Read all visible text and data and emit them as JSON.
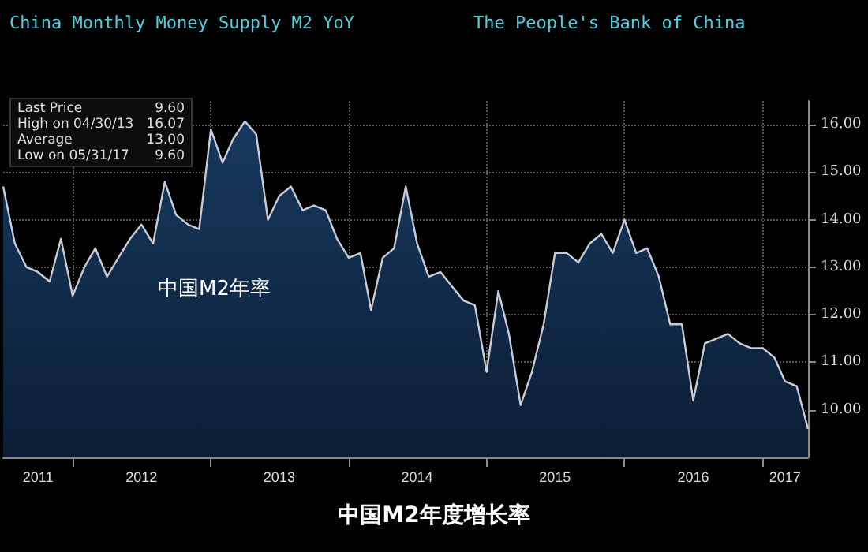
{
  "chart_data": {
    "type": "area",
    "title": "中国M2年度增长率",
    "annotations": [
      "China Monthly Money Supply M2 YoY",
      "The People's Bank of China",
      "中国M2年率",
      "Last Price 9.60",
      "High on 04/30/13 16.07",
      "Average 13.00",
      "Low on 05/31/17 9.60"
    ],
    "x": [
      "2011-07",
      "2011-08",
      "2011-09",
      "2011-10",
      "2011-11",
      "2011-12",
      "2012-01",
      "2012-02",
      "2012-03",
      "2012-04",
      "2012-05",
      "2012-06",
      "2012-07",
      "2012-08",
      "2012-09",
      "2012-10",
      "2012-11",
      "2012-12",
      "2013-01",
      "2013-02",
      "2013-03",
      "2013-04",
      "2013-05",
      "2013-06",
      "2013-07",
      "2013-08",
      "2013-09",
      "2013-10",
      "2013-11",
      "2013-12",
      "2014-01",
      "2014-02",
      "2014-03",
      "2014-04",
      "2014-05",
      "2014-06",
      "2014-07",
      "2014-08",
      "2014-09",
      "2014-10",
      "2014-11",
      "2014-12",
      "2015-01",
      "2015-02",
      "2015-03",
      "2015-04",
      "2015-05",
      "2015-06",
      "2015-07",
      "2015-08",
      "2015-09",
      "2015-10",
      "2015-11",
      "2015-12",
      "2016-01",
      "2016-02",
      "2016-03",
      "2016-04",
      "2016-05",
      "2016-06",
      "2016-07",
      "2016-08",
      "2016-09",
      "2016-10",
      "2016-11",
      "2016-12",
      "2017-01",
      "2017-02",
      "2017-03",
      "2017-04",
      "2017-05"
    ],
    "values": [
      14.7,
      13.5,
      13.0,
      12.9,
      12.7,
      13.6,
      12.4,
      13.0,
      13.4,
      12.8,
      13.2,
      13.6,
      13.9,
      13.5,
      14.8,
      14.1,
      13.9,
      13.8,
      15.9,
      15.2,
      15.7,
      16.07,
      15.8,
      14.0,
      14.5,
      14.7,
      14.2,
      14.3,
      14.2,
      13.6,
      13.2,
      13.3,
      12.1,
      13.2,
      13.4,
      14.7,
      13.5,
      12.8,
      12.9,
      12.6,
      12.3,
      12.2,
      10.8,
      12.5,
      11.6,
      10.1,
      10.8,
      11.8,
      13.3,
      13.3,
      13.1,
      13.5,
      13.7,
      13.3,
      14.0,
      13.3,
      13.4,
      12.8,
      11.8,
      11.8,
      10.2,
      11.4,
      11.5,
      11.6,
      11.4,
      11.3,
      11.3,
      11.1,
      10.6,
      10.5,
      9.6
    ],
    "color": "#17395e",
    "xlim": [
      "2011-07",
      "2017-05"
    ],
    "xticks": [
      {
        "value": "2011-10",
        "label": "2011"
      },
      {
        "value": "2012-01",
        "label": null
      },
      {
        "value": "2012-07",
        "label": "2012"
      },
      {
        "value": "2013-01",
        "label": null
      },
      {
        "value": "2013-07",
        "label": "2013"
      },
      {
        "value": "2014-01",
        "label": null
      },
      {
        "value": "2014-07",
        "label": "2014"
      },
      {
        "value": "2015-01",
        "label": null
      },
      {
        "value": "2015-07",
        "label": "2015"
      },
      {
        "value": "2016-01",
        "label": null
      },
      {
        "value": "2016-07",
        "label": "2016"
      },
      {
        "value": "2017-01",
        "label": null
      },
      {
        "value": "2017-03",
        "label": "2017"
      }
    ],
    "ylim": [
      9,
      16.5
    ],
    "yticks": [
      {
        "value": 10,
        "label": "10.00"
      },
      {
        "value": 11,
        "label": "11.00"
      },
      {
        "value": 12,
        "label": "12.00"
      },
      {
        "value": 13,
        "label": "13.00"
      },
      {
        "value": 14,
        "label": "14.00"
      },
      {
        "value": 15,
        "label": "15.00"
      },
      {
        "value": 16,
        "label": "16.00"
      }
    ],
    "grid": true
  }
}
